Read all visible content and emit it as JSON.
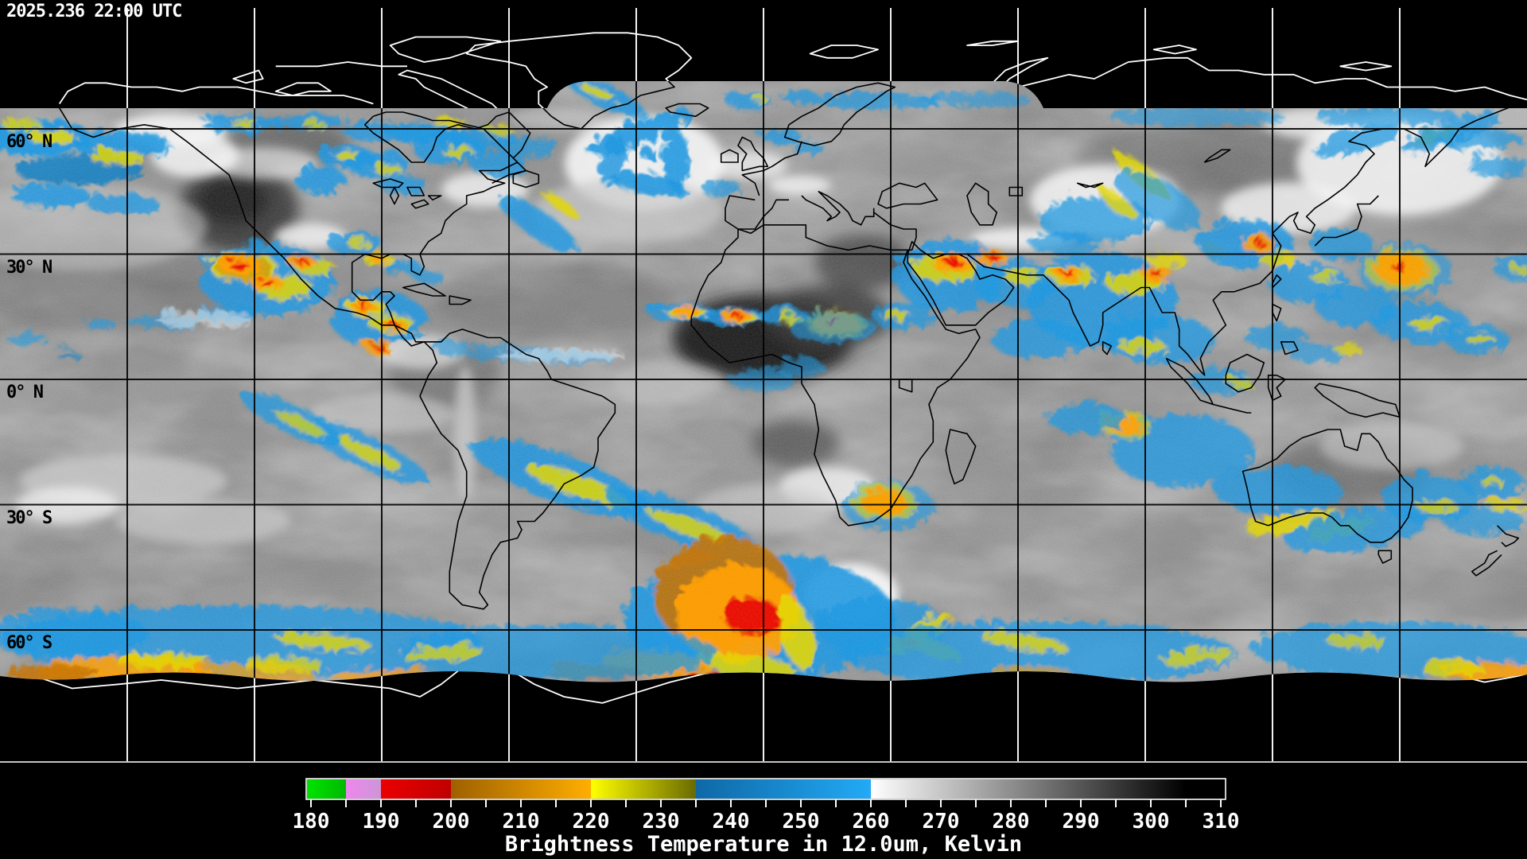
{
  "header": {
    "timestamp": "2025.236 22:00 UTC"
  },
  "map": {
    "projection": "equirectangular-satellite-composite",
    "latitude_labels": [
      {
        "text": "60° N"
      },
      {
        "text": "30° N"
      },
      {
        "text": "0° N"
      },
      {
        "text": "30° S"
      },
      {
        "text": "60° S"
      }
    ],
    "grid": {
      "lon_spacing_deg": 30,
      "lat_spacing_deg": 30,
      "line_color_over_data": "#000000",
      "line_color_over_void": "#ffffff"
    },
    "colors": {
      "cloud_blue": "#1e97e0",
      "cloud_yellow": "#e3d600",
      "cloud_orange": "#ff9e00",
      "cloud_red": "#e80000",
      "void_black": "#000000"
    }
  },
  "colorbar": {
    "title": "Brightness Temperature in 12.0um, Kelvin",
    "unit_min": 180,
    "unit_max": 310,
    "minor_tick_step": 5,
    "tick_labels": [
      "180",
      "190",
      "200",
      "210",
      "220",
      "230",
      "240",
      "250",
      "260",
      "270",
      "280",
      "290",
      "300",
      "310"
    ],
    "segments": [
      {
        "from": 180,
        "to": 185,
        "start": "#00e000",
        "end": "#00b800"
      },
      {
        "from": 185,
        "to": 190,
        "start": "#ee86ee",
        "end": "#cc96d6"
      },
      {
        "from": 190,
        "to": 200,
        "start": "#ea0000",
        "end": "#c00000"
      },
      {
        "from": 200,
        "to": 220,
        "start": "#9e6000",
        "end": "#ffae00"
      },
      {
        "from": 220,
        "to": 235,
        "start": "#ffff00",
        "end": "#6a6a00"
      },
      {
        "from": 235,
        "to": 260,
        "start": "#0e68a6",
        "end": "#22aaf6"
      },
      {
        "from": 260,
        "to": 305,
        "start": "#ffffff",
        "end": "#000000"
      },
      {
        "from": 305,
        "to": 310,
        "start": "#000000",
        "end": "#000000"
      }
    ]
  }
}
